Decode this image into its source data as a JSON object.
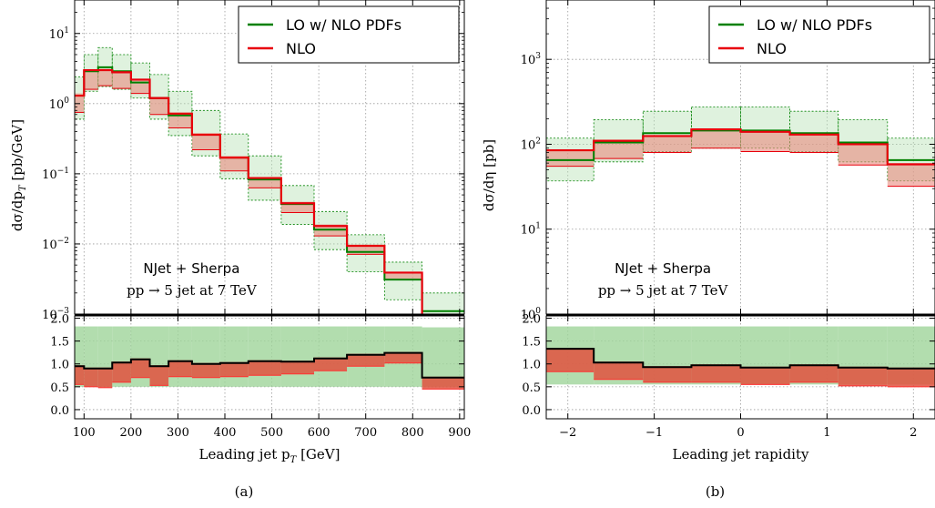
{
  "chart_data": [
    {
      "type": "line",
      "panel_label": "(a)",
      "xlabel": "Leading jet p_T [GeV]",
      "ylabel": "dσ/dp_T [pb/GeV]",
      "ylabel_parts": [
        "dσ/dp",
        "T",
        " [pb/GeV]"
      ],
      "xlabel_parts": [
        "Leading jet p",
        "T",
        " [GeV]"
      ],
      "xscale": "linear",
      "yscale": "log",
      "xlim": [
        80,
        910
      ],
      "ylim": [
        0.001,
        30
      ],
      "xticks": [
        100,
        200,
        300,
        400,
        500,
        600,
        700,
        800,
        900
      ],
      "yticks": [
        0.001,
        0.01,
        0.1,
        1,
        10
      ],
      "ytick_labels": [
        {
          "b": "10",
          "e": "−3"
        },
        {
          "b": "10",
          "e": "−2"
        },
        {
          "b": "10",
          "e": "−1"
        },
        {
          "b": "10",
          "e": "0"
        },
        {
          "b": "10",
          "e": "1"
        }
      ],
      "grid": true,
      "legend_position": "top-right",
      "annotation": [
        "NJet + Sherpa",
        "pp → 5 jet at 7 TeV"
      ],
      "bin_edges": [
        80,
        100,
        130,
        160,
        200,
        240,
        280,
        330,
        390,
        450,
        520,
        590,
        660,
        740,
        820,
        910
      ],
      "series": [
        {
          "name": "LO w/ NLO PDFs",
          "color": "#008000",
          "values": [
            1.3,
            2.9,
            3.3,
            2.9,
            2.0,
            1.2,
            0.68,
            0.36,
            0.17,
            0.083,
            0.037,
            0.016,
            0.0077,
            0.0031,
            0.0011
          ],
          "band_low": [
            0.6,
            1.5,
            1.75,
            1.6,
            1.2,
            0.6,
            0.35,
            0.18,
            0.085,
            0.042,
            0.019,
            0.0083,
            0.004,
            0.0016,
            0.0006
          ],
          "band_high": [
            2.4,
            5.0,
            6.3,
            5.0,
            3.8,
            2.6,
            1.5,
            0.8,
            0.37,
            0.18,
            0.068,
            0.029,
            0.0135,
            0.0055,
            0.002
          ]
        },
        {
          "name": "NLO",
          "color": "#e8000b",
          "values": [
            1.3,
            3.0,
            3.0,
            2.8,
            2.2,
            1.2,
            0.72,
            0.36,
            0.17,
            0.087,
            0.038,
            0.018,
            0.0094,
            0.0039,
            0.0008
          ],
          "band_low": [
            0.75,
            1.6,
            1.8,
            1.65,
            1.4,
            0.7,
            0.45,
            0.22,
            0.11,
            0.063,
            0.028,
            0.013,
            0.0071,
            0.0031,
            0.0006
          ],
          "band_high": [
            1.4,
            3.1,
            3.15,
            2.9,
            2.25,
            1.25,
            0.75,
            0.38,
            0.18,
            0.09,
            0.04,
            0.019,
            0.0097,
            0.004,
            0.0009
          ]
        }
      ],
      "ratio": {
        "ylim": [
          -0.2,
          2.05
        ],
        "yticks": [
          0.0,
          0.5,
          1.0,
          1.5,
          2.0
        ],
        "ytick_labels": [
          "0.0",
          "0.5",
          "1.0",
          "1.5",
          "2.0"
        ],
        "lo_band_low": [
          0.5,
          0.5,
          0.5,
          0.5,
          0.5,
          0.5,
          0.5,
          0.5,
          0.5,
          0.5,
          0.5,
          0.5,
          0.5,
          0.5,
          0.5
        ],
        "lo_band_high": [
          1.82,
          1.82,
          1.82,
          1.82,
          1.82,
          1.82,
          1.82,
          1.82,
          1.82,
          1.82,
          1.82,
          1.82,
          1.82,
          1.82,
          1.8
        ],
        "nlo_central": [
          0.95,
          0.9,
          0.9,
          1.03,
          1.1,
          0.95,
          1.06,
          1.0,
          1.02,
          1.06,
          1.05,
          1.12,
          1.2,
          1.24,
          0.7
        ],
        "nlo_band_low": [
          0.55,
          0.5,
          0.48,
          0.6,
          0.7,
          0.53,
          0.72,
          0.7,
          0.72,
          0.75,
          0.78,
          0.85,
          0.95,
          1.02,
          0.45
        ],
        "nlo_band_high": [
          0.97,
          0.92,
          0.92,
          1.05,
          1.12,
          0.97,
          1.08,
          1.02,
          1.04,
          1.08,
          1.07,
          1.14,
          1.22,
          1.26,
          0.72
        ]
      }
    },
    {
      "type": "line",
      "panel_label": "(b)",
      "xlabel": "Leading jet rapidity",
      "ylabel": "dσ/dη [pb]",
      "ylabel_parts": [
        "dσ/dη [pb]",
        "",
        ""
      ],
      "xlabel_parts": [
        "Leading jet rapidity",
        "",
        ""
      ],
      "xscale": "linear",
      "yscale": "log",
      "xlim": [
        -2.25,
        2.25
      ],
      "ylim": [
        1,
        5000
      ],
      "xticks": [
        -2,
        -1,
        0,
        1,
        2
      ],
      "xtick_labels": [
        "−2",
        "−1",
        "0",
        "1",
        "2"
      ],
      "yticks": [
        1,
        10,
        100,
        1000
      ],
      "ytick_labels": [
        {
          "b": "10",
          "e": "0"
        },
        {
          "b": "10",
          "e": "1"
        },
        {
          "b": "10",
          "e": "2"
        },
        {
          "b": "10",
          "e": "3"
        }
      ],
      "grid": true,
      "legend_position": "top-right",
      "annotation": [
        "NJet + Sherpa",
        "pp → 5 jet at 7 TeV"
      ],
      "bin_edges": [
        -2.25,
        -1.7,
        -1.13,
        -0.57,
        0,
        0.57,
        1.13,
        1.7,
        2.25
      ],
      "series": [
        {
          "name": "LO w/ NLO PDFs",
          "color": "#008000",
          "values": [
            65,
            105,
            135,
            145,
            145,
            135,
            105,
            65
          ],
          "band_low": [
            37,
            62,
            82,
            90,
            90,
            82,
            62,
            37
          ],
          "band_high": [
            118,
            195,
            245,
            275,
            275,
            245,
            195,
            118
          ]
        },
        {
          "name": "NLO",
          "color": "#e8000b",
          "values": [
            85,
            110,
            125,
            150,
            140,
            130,
            100,
            58
          ],
          "band_low": [
            55,
            68,
            80,
            90,
            82,
            80,
            57,
            32
          ],
          "band_high": [
            87,
            112,
            128,
            153,
            143,
            133,
            102,
            60
          ]
        }
      ],
      "ratio": {
        "ylim": [
          -0.2,
          2.05
        ],
        "yticks": [
          0.0,
          0.5,
          1.0,
          1.5,
          2.0
        ],
        "ytick_labels": [
          "0.0",
          "0.5",
          "1.0",
          "1.5",
          "2.0"
        ],
        "lo_band_low": [
          0.55,
          0.55,
          0.55,
          0.55,
          0.55,
          0.55,
          0.55,
          0.55
        ],
        "lo_band_high": [
          1.82,
          1.82,
          1.82,
          1.82,
          1.82,
          1.82,
          1.82,
          1.82
        ],
        "nlo_central": [
          1.33,
          1.03,
          0.93,
          0.97,
          0.92,
          0.97,
          0.92,
          0.9
        ],
        "nlo_band_low": [
          0.83,
          0.66,
          0.6,
          0.6,
          0.55,
          0.6,
          0.52,
          0.5
        ],
        "nlo_band_high": [
          1.35,
          1.05,
          0.95,
          0.99,
          0.94,
          0.99,
          0.94,
          0.92
        ]
      }
    }
  ]
}
